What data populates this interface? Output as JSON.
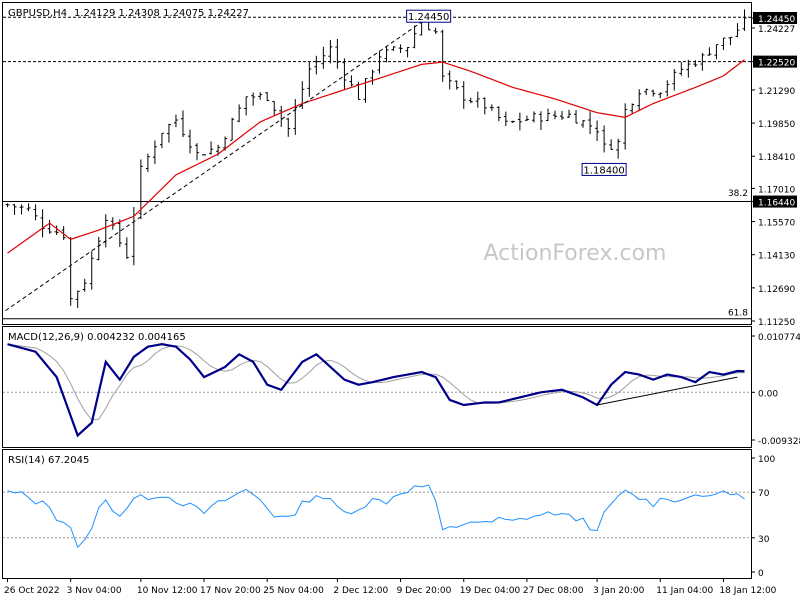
{
  "header": {
    "symbol": "GBPUSD,H4",
    "ohlc": "1.24129 1.24308 1.24075 1.24227"
  },
  "watermark": "ActionForex.com",
  "colors": {
    "candle": "#000000",
    "ma": "#e00000",
    "trendline": "#000000",
    "macd": "#00008b",
    "signal": "#a0a0a0",
    "rsi": "#1e90ff",
    "hline": "#000000",
    "grid": "#9a9a9a",
    "callout_border": "#00008b",
    "price_box": "#000000"
  },
  "chart_data": [
    {
      "type": "candlestick",
      "name": "price",
      "ylim": [
        1.1125,
        1.2485
      ],
      "right_axis_ticks": [
        "1.24450",
        "1.24227",
        "1.22520",
        "1.21290",
        "1.19850",
        "1.18410",
        "1.17010",
        "1.16440",
        "1.15570",
        "1.14130",
        "1.12690",
        "1.11250"
      ],
      "boxed_ticks": [
        "1.24450",
        "1.22520",
        "1.16440"
      ],
      "horizontal_levels": [
        1.2445,
        1.2252,
        1.1644
      ],
      "fib_labels": [
        {
          "text": "38.2",
          "y": 1.166
        },
        {
          "text": "61.8",
          "y": 1.114
        }
      ],
      "callouts": [
        {
          "text": "1.24450",
          "x": 60,
          "y": 1.2445
        },
        {
          "text": "1.18400",
          "x": 85,
          "y": 1.184
        }
      ],
      "x_labels": [
        "26 Oct 2022",
        "3 Nov 04:00",
        "10 Nov 12:00",
        "17 Nov 20:00",
        "25 Nov 04:00",
        "2 Dec 12:00",
        "9 Dec 20:00",
        "19 Dec 04:00",
        "27 Dec 08:00",
        "3 Jan 20:00",
        "11 Jan 04:00",
        "18 Jan 12:00"
      ],
      "x_label_index": [
        0,
        9,
        19,
        28,
        37,
        47,
        56,
        65,
        74,
        84,
        93,
        102
      ],
      "n_bars": 106,
      "close_anchors": [
        [
          0,
          1.163
        ],
        [
          3,
          1.161
        ],
        [
          5,
          1.154
        ],
        [
          8,
          1.15
        ],
        [
          9,
          1.122
        ],
        [
          11,
          1.13
        ],
        [
          14,
          1.158
        ],
        [
          17,
          1.141
        ],
        [
          19,
          1.178
        ],
        [
          22,
          1.195
        ],
        [
          24,
          1.2
        ],
        [
          27,
          1.185
        ],
        [
          30,
          1.188
        ],
        [
          34,
          1.21
        ],
        [
          37,
          1.21
        ],
        [
          40,
          1.196
        ],
        [
          43,
          1.222
        ],
        [
          46,
          1.231
        ],
        [
          48,
          1.219
        ],
        [
          50,
          1.21
        ],
        [
          53,
          1.228
        ],
        [
          57,
          1.232
        ],
        [
          59,
          1.243
        ],
        [
          61,
          1.238
        ],
        [
          62,
          1.218
        ],
        [
          65,
          1.21
        ],
        [
          68,
          1.206
        ],
        [
          71,
          1.198
        ],
        [
          75,
          1.201
        ],
        [
          80,
          1.202
        ],
        [
          84,
          1.196
        ],
        [
          85,
          1.188
        ],
        [
          87,
          1.19
        ],
        [
          88,
          1.204
        ],
        [
          90,
          1.213
        ],
        [
          93,
          1.213
        ],
        [
          96,
          1.222
        ],
        [
          99,
          1.227
        ],
        [
          101,
          1.233
        ],
        [
          103,
          1.236
        ],
        [
          105,
          1.2423
        ]
      ],
      "ma_anchors": [
        [
          0,
          1.142
        ],
        [
          6,
          1.155
        ],
        [
          9,
          1.148
        ],
        [
          13,
          1.152
        ],
        [
          18,
          1.158
        ],
        [
          24,
          1.176
        ],
        [
          30,
          1.185
        ],
        [
          36,
          1.199
        ],
        [
          42,
          1.207
        ],
        [
          48,
          1.213
        ],
        [
          54,
          1.219
        ],
        [
          59,
          1.224
        ],
        [
          62,
          1.225
        ],
        [
          66,
          1.221
        ],
        [
          72,
          1.214
        ],
        [
          78,
          1.209
        ],
        [
          84,
          1.203
        ],
        [
          88,
          1.201
        ],
        [
          92,
          1.207
        ],
        [
          98,
          1.214
        ],
        [
          102,
          1.219
        ],
        [
          105,
          1.226
        ]
      ],
      "trendline": [
        [
          0,
          1.117
        ],
        [
          60,
          1.2445
        ]
      ]
    },
    {
      "type": "line",
      "name": "MACD",
      "label": "MACD(12,26,9) 0.004232 0.004165",
      "ylim": [
        -0.0098,
        0.0115
      ],
      "right_axis_ticks": [
        "0.010774",
        "0.00",
        "-0.009328"
      ],
      "macd_anchors": [
        [
          0,
          0.0095
        ],
        [
          4,
          0.008
        ],
        [
          7,
          0.003
        ],
        [
          10,
          -0.0085
        ],
        [
          12,
          -0.006
        ],
        [
          14,
          0.006
        ],
        [
          16,
          0.0025
        ],
        [
          18,
          0.007
        ],
        [
          20,
          0.009
        ],
        [
          22,
          0.0095
        ],
        [
          24,
          0.009
        ],
        [
          26,
          0.0065
        ],
        [
          28,
          0.003
        ],
        [
          31,
          0.005
        ],
        [
          33,
          0.0075
        ],
        [
          35,
          0.006
        ],
        [
          37,
          0.0015
        ],
        [
          39,
          0.0005
        ],
        [
          42,
          0.006
        ],
        [
          44,
          0.0075
        ],
        [
          46,
          0.005
        ],
        [
          48,
          0.0025
        ],
        [
          50,
          0.0015
        ],
        [
          52,
          0.002
        ],
        [
          55,
          0.003
        ],
        [
          57,
          0.0035
        ],
        [
          59,
          0.004
        ],
        [
          61,
          0.003
        ],
        [
          63,
          -0.0015
        ],
        [
          65,
          -0.0025
        ],
        [
          68,
          -0.002
        ],
        [
          70,
          -0.002
        ],
        [
          73,
          -0.001
        ],
        [
          76,
          0.0
        ],
        [
          79,
          0.0005
        ],
        [
          82,
          -0.001
        ],
        [
          84,
          -0.0025
        ],
        [
          86,
          0.0015
        ],
        [
          88,
          0.004
        ],
        [
          90,
          0.0035
        ],
        [
          92,
          0.0025
        ],
        [
          94,
          0.0035
        ],
        [
          96,
          0.003
        ],
        [
          98,
          0.002
        ],
        [
          100,
          0.004
        ],
        [
          102,
          0.0035
        ],
        [
          104,
          0.0042
        ]
      ],
      "signal_lag": 2,
      "trendline": [
        [
          84,
          -0.0025
        ],
        [
          104,
          0.003
        ]
      ]
    },
    {
      "type": "line",
      "name": "RSI",
      "label": "RSI(14) 67.2045",
      "ylim": [
        0,
        100
      ],
      "right_axis_ticks": [
        "100",
        "70",
        "30",
        "0"
      ],
      "levels": [
        70,
        30
      ],
      "anchors": [
        [
          0,
          70
        ],
        [
          2,
          68
        ],
        [
          4,
          62
        ],
        [
          6,
          58
        ],
        [
          7,
          48
        ],
        [
          9,
          40
        ],
        [
          10,
          20
        ],
        [
          11,
          26
        ],
        [
          13,
          55
        ],
        [
          14,
          62
        ],
        [
          16,
          50
        ],
        [
          18,
          64
        ],
        [
          20,
          66
        ],
        [
          22,
          68
        ],
        [
          24,
          63
        ],
        [
          26,
          58
        ],
        [
          28,
          52
        ],
        [
          30,
          60
        ],
        [
          32,
          66
        ],
        [
          34,
          72
        ],
        [
          36,
          64
        ],
        [
          38,
          50
        ],
        [
          40,
          46
        ],
        [
          42,
          60
        ],
        [
          44,
          68
        ],
        [
          46,
          62
        ],
        [
          48,
          52
        ],
        [
          50,
          56
        ],
        [
          52,
          63
        ],
        [
          54,
          62
        ],
        [
          56,
          70
        ],
        [
          58,
          74
        ],
        [
          60,
          76
        ],
        [
          61,
          60
        ],
        [
          62,
          36
        ],
        [
          64,
          40
        ],
        [
          66,
          45
        ],
        [
          68,
          42
        ],
        [
          70,
          46
        ],
        [
          72,
          44
        ],
        [
          74,
          48
        ],
        [
          76,
          50
        ],
        [
          78,
          52
        ],
        [
          80,
          48
        ],
        [
          82,
          46
        ],
        [
          84,
          34
        ],
        [
          85,
          50
        ],
        [
          86,
          60
        ],
        [
          88,
          70
        ],
        [
          90,
          65
        ],
        [
          92,
          60
        ],
        [
          94,
          66
        ],
        [
          96,
          62
        ],
        [
          98,
          70
        ],
        [
          100,
          64
        ],
        [
          102,
          72
        ],
        [
          104,
          66
        ],
        [
          105,
          67
        ]
      ]
    }
  ]
}
